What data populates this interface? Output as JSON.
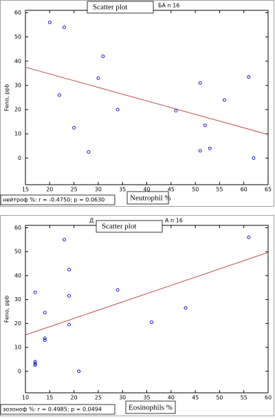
{
  "chart_data": [
    {
      "type": "scatter",
      "title": "БА n 16",
      "overlay_title": "Scatter plot",
      "x_label": "Neutrophil %",
      "y_label": "Feno, ppb",
      "stats": "нейтроф %:  r = -0.4750; p = 0.0630",
      "x": [
        20,
        23,
        31,
        30,
        22,
        34,
        25,
        28,
        46,
        51,
        51,
        52,
        53,
        56,
        61,
        62
      ],
      "y": [
        56,
        54,
        42,
        33,
        26,
        20,
        12.5,
        2.5,
        19.5,
        31,
        3,
        13.5,
        4,
        24,
        33.5,
        0
      ],
      "fit": {
        "x": [
          15,
          65
        ],
        "y": [
          37.5,
          9.7
        ]
      },
      "xlim": [
        15,
        65
      ],
      "ylim": [
        -11,
        61
      ],
      "xticks": [
        15,
        20,
        25,
        30,
        35,
        40,
        45,
        50,
        55,
        60,
        65
      ],
      "yticks": [
        0,
        10,
        20,
        30,
        40,
        50,
        60
      ],
      "color": "#0000cc",
      "fit_color": "#c04848",
      "grid": false
    },
    {
      "type": "scatter",
      "title_left": "Д",
      "title": "А n 16",
      "overlay_title": "Scatter plot",
      "x_label": "Eosinophils %",
      "y_label": "Feno, ppb",
      "stats": "эозоноф %:  r = 0.4985; p = 0.0494",
      "x": [
        56,
        18,
        19,
        19,
        12,
        29,
        14,
        14,
        14,
        19,
        36,
        43,
        12,
        12,
        12,
        21
      ],
      "y": [
        56,
        55,
        42.5,
        31.5,
        33,
        34,
        24.5,
        13.8,
        13,
        19.5,
        20.5,
        26.5,
        4,
        3.2,
        2.6,
        0
      ],
      "fit": {
        "x": [
          10,
          60
        ],
        "y": [
          15.2,
          49.7
        ]
      },
      "xlim": [
        10,
        60
      ],
      "ylim": [
        -9,
        61
      ],
      "xticks": [
        10,
        15,
        20,
        25,
        30,
        35,
        40,
        45,
        50,
        55,
        60
      ],
      "yticks": [
        0,
        10,
        20,
        30,
        40,
        50,
        60
      ],
      "color": "#0000cc",
      "fit_color": "#c04848",
      "grid": false
    }
  ]
}
